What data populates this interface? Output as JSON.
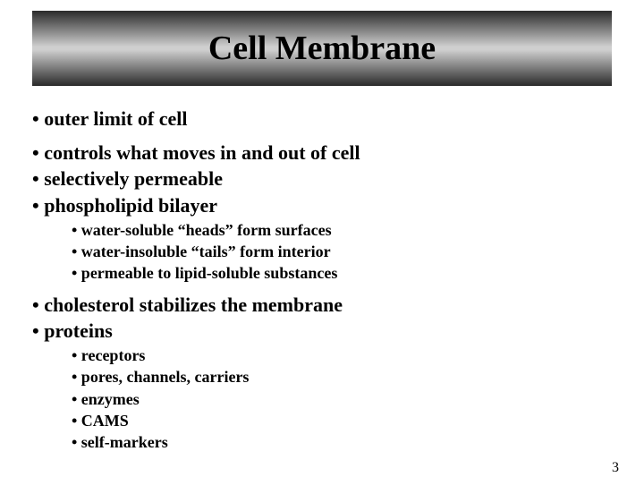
{
  "title": "Cell Membrane",
  "bullets": {
    "b1": "• outer limit of cell",
    "b2": "• controls what moves in and out of cell",
    "b3": "• selectively permeable",
    "b4": "• phospholipid bilayer",
    "s1": "• water-soluble “heads” form surfaces",
    "s2": "• water-insoluble “tails” form interior",
    "s3": "• permeable to lipid-soluble substances",
    "b5": "• cholesterol stabilizes the membrane",
    "b6": "• proteins",
    "s4": "• receptors",
    "s5": "• pores, channels, carriers",
    "s6": "• enzymes",
    "s7": "• CAMS",
    "s8": "• self-markers"
  },
  "pageNumber": "3",
  "style": {
    "titleFontSize": 38,
    "lvl1FontSize": 22,
    "lvl2FontSize": 18,
    "titleGradient": [
      "#2a2a2a",
      "#cfcfcf",
      "#2a2a2a"
    ],
    "textColor": "#000000",
    "background": "#ffffff"
  }
}
